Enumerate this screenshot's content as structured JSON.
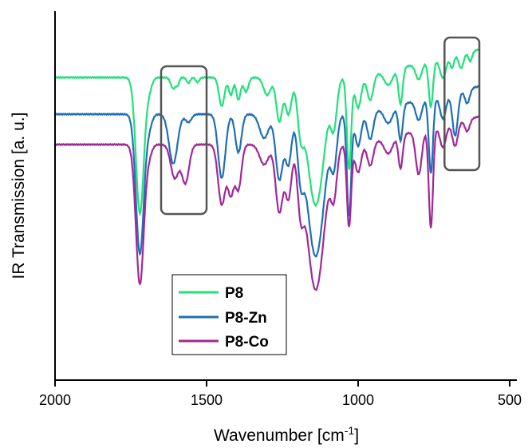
{
  "chart_data": {
    "type": "line",
    "title": "",
    "xlabel_main": "Wavenumber [cm",
    "xlabel_sup": "-1",
    "xlabel_end": "]",
    "ylabel": "IR Transmission [a. u.]",
    "xlim": [
      2000,
      500
    ],
    "x_reversed": true,
    "x_ticks": [
      "2000",
      "1500",
      "1000",
      "500"
    ],
    "x_tick_values": [
      2000,
      1500,
      1000,
      500
    ],
    "y_ticks": [],
    "grid": false,
    "legend_position": "bottom-center",
    "colors": {
      "P8": "#22e07a",
      "P8-Zn": "#1f6fb5",
      "P8-Co": "#a0289a",
      "box": "#555555"
    },
    "series": [
      {
        "name": "P8",
        "baseline": 97,
        "peaks": [
          [
            1720,
            170,
            13
          ],
          [
            1690,
            14,
            10
          ],
          [
            1610,
            14,
            8
          ],
          [
            1595,
            8,
            5
          ],
          [
            1560,
            7,
            6
          ],
          [
            1530,
            6,
            6
          ],
          [
            1450,
            36,
            9
          ],
          [
            1420,
            22,
            7
          ],
          [
            1395,
            28,
            7
          ],
          [
            1370,
            18,
            8
          ],
          [
            1300,
            22,
            12
          ],
          [
            1260,
            55,
            10
          ],
          [
            1230,
            45,
            10
          ],
          [
            1190,
            50,
            10
          ],
          [
            1140,
            160,
            28
          ],
          [
            1080,
            52,
            10
          ],
          [
            1030,
            115,
            7
          ],
          [
            1000,
            38,
            10
          ],
          [
            960,
            32,
            10
          ],
          [
            900,
            18,
            14
          ],
          [
            860,
            45,
            7
          ],
          [
            800,
            20,
            10
          ],
          [
            760,
            58,
            7
          ],
          [
            720,
            25,
            10
          ],
          [
            690,
            15,
            6
          ],
          [
            660,
            18,
            8
          ],
          [
            630,
            12,
            6
          ]
        ]
      },
      {
        "name": "P8-Zn",
        "baseline": 143,
        "peaks": [
          [
            1720,
            175,
            13
          ],
          [
            1690,
            15,
            10
          ],
          [
            1610,
            62,
            14
          ],
          [
            1560,
            10,
            10
          ],
          [
            1450,
            80,
            12
          ],
          [
            1395,
            48,
            10
          ],
          [
            1310,
            30,
            15
          ],
          [
            1260,
            82,
            12
          ],
          [
            1230,
            60,
            10
          ],
          [
            1190,
            58,
            10
          ],
          [
            1140,
            178,
            28
          ],
          [
            1080,
            55,
            10
          ],
          [
            1030,
            128,
            7
          ],
          [
            1000,
            40,
            10
          ],
          [
            960,
            35,
            10
          ],
          [
            900,
            20,
            14
          ],
          [
            860,
            45,
            7
          ],
          [
            800,
            25,
            10
          ],
          [
            760,
            95,
            7
          ],
          [
            720,
            30,
            10
          ],
          [
            680,
            55,
            9
          ],
          [
            640,
            18,
            8
          ]
        ]
      },
      {
        "name": "P8-Co",
        "baseline": 181,
        "peaks": [
          [
            1720,
            175,
            13
          ],
          [
            1690,
            12,
            10
          ],
          [
            1605,
            42,
            13
          ],
          [
            1570,
            48,
            12
          ],
          [
            1450,
            75,
            12
          ],
          [
            1420,
            60,
            10
          ],
          [
            1395,
            55,
            10
          ],
          [
            1310,
            25,
            15
          ],
          [
            1260,
            85,
            12
          ],
          [
            1230,
            65,
            10
          ],
          [
            1190,
            62,
            10
          ],
          [
            1140,
            182,
            28
          ],
          [
            1080,
            55,
            10
          ],
          [
            1030,
            103,
            7
          ],
          [
            1000,
            35,
            10
          ],
          [
            960,
            30,
            10
          ],
          [
            900,
            20,
            14
          ],
          [
            860,
            42,
            7
          ],
          [
            800,
            55,
            10
          ],
          [
            760,
            125,
            7
          ],
          [
            720,
            28,
            10
          ],
          [
            680,
            30,
            9
          ],
          [
            640,
            15,
            8
          ]
        ]
      }
    ],
    "highlight_boxes": [
      [
        1650,
        1500
      ],
      [
        715,
        600
      ]
    ]
  }
}
